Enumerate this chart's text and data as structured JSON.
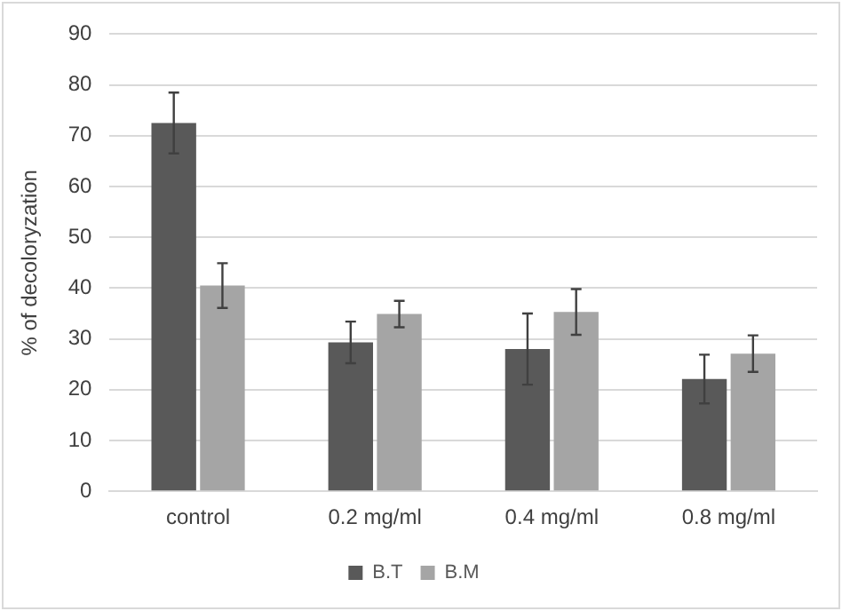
{
  "chart_data": {
    "type": "bar",
    "ylabel": "% of decoloryzation",
    "categories": [
      "control",
      "0.2 mg/ml",
      "0.4 mg/ml",
      "0.8 mg/ml"
    ],
    "series": [
      {
        "name": "B.T",
        "color": "#595959",
        "values": [
          72.5,
          29.3,
          28,
          22.1
        ],
        "errors": [
          6,
          4.1,
          7,
          4.8
        ]
      },
      {
        "name": "B.M",
        "color": "#a5a5a5",
        "values": [
          40.5,
          34.9,
          35.3,
          27.1
        ],
        "errors": [
          4.4,
          2.6,
          4.5,
          3.6
        ]
      }
    ],
    "ylim": [
      0,
      90
    ],
    "yticks": [
      0,
      10,
      20,
      30,
      40,
      50,
      60,
      70,
      80,
      90
    ],
    "grid": "y",
    "legend": "bottom"
  }
}
